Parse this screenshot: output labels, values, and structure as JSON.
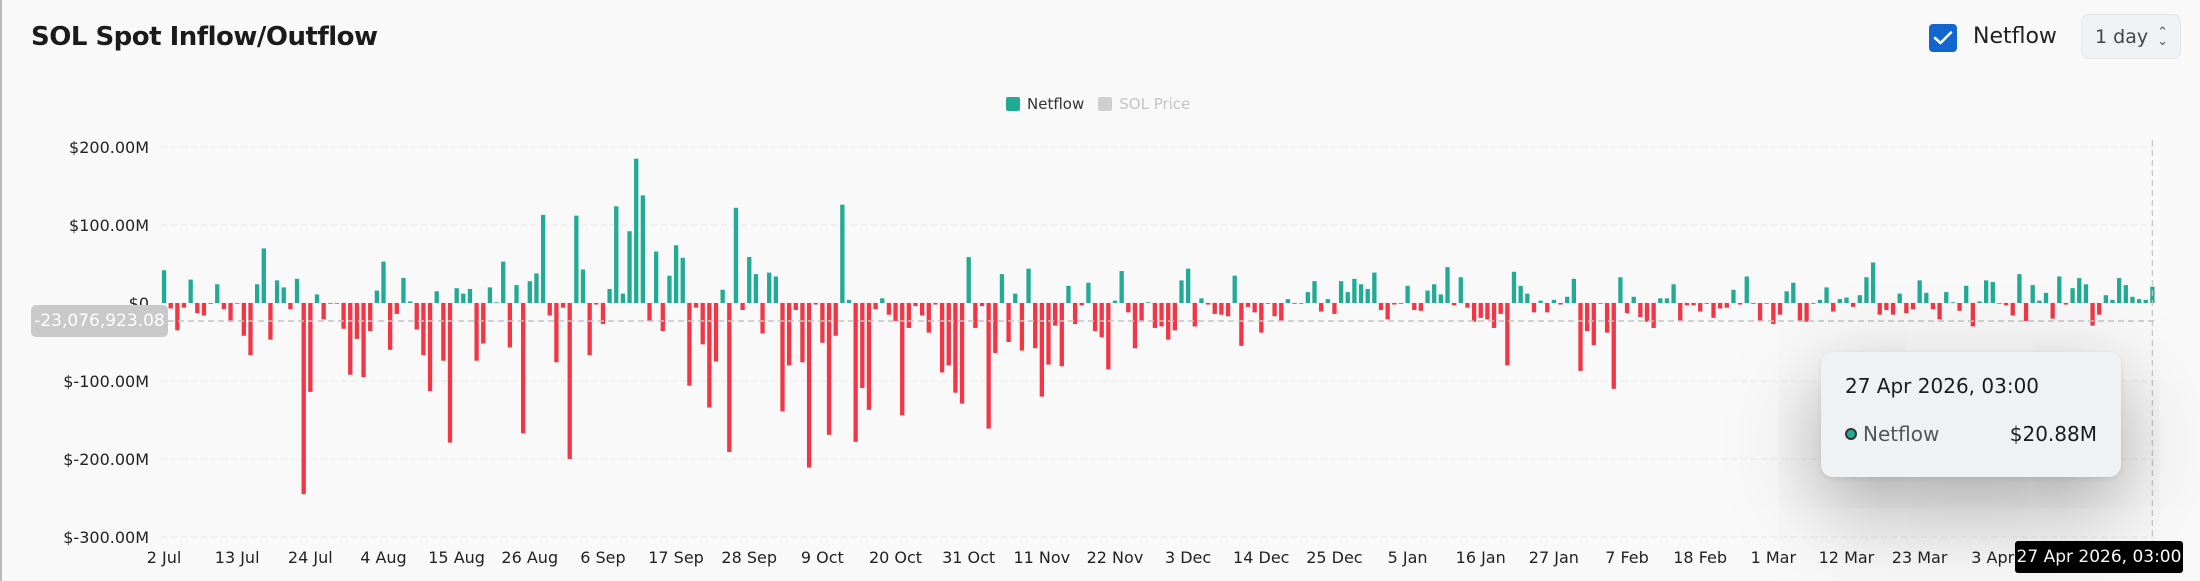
{
  "header": {
    "title": "SOL Spot Inflow/Outflow",
    "netflow_toggle": {
      "label": "Netflow",
      "checked": true
    },
    "interval_select": {
      "value": "1 day"
    }
  },
  "legend": [
    {
      "label": "Netflow",
      "color": "#22ab94",
      "active": true
    },
    {
      "label": "SOL Price",
      "color": "#cfcfcf",
      "active": false
    }
  ],
  "crosshair": {
    "y_value_label": "-23,076,923.08",
    "x_value_label": "27 Apr 2026, 03:00"
  },
  "tooltip": {
    "date": "27 Apr 2026, 03:00",
    "series": "Netflow",
    "value": "$20.88M"
  },
  "colors": {
    "positive": "#22ab94",
    "negative": "#f23645"
  },
  "chart_data": {
    "type": "bar",
    "title": "SOL Spot Inflow/Outflow",
    "unit": "USD millions",
    "ylim": [
      -300,
      200
    ],
    "y_ticks": [
      200,
      100,
      0,
      -100,
      -200,
      -300
    ],
    "y_tick_labels": [
      "$200.00M",
      "$100.00M",
      "$0",
      "$-100.00M",
      "$-200.00M",
      "$-300.00M"
    ],
    "x_tick_labels": [
      "2 Jul",
      "13 Jul",
      "24 Jul",
      "4 Aug",
      "15 Aug",
      "26 Aug",
      "6 Sep",
      "17 Sep",
      "28 Sep",
      "9 Oct",
      "20 Oct",
      "31 Oct",
      "11 Nov",
      "22 Nov",
      "3 Dec",
      "14 Dec",
      "25 Dec",
      "5 Jan",
      "16 Jan",
      "27 Jan",
      "7 Feb",
      "18 Feb",
      "1 Mar",
      "12 Mar",
      "23 Mar",
      "3 Apr"
    ],
    "x_range": [
      "2 Jul",
      "27 Apr 2026"
    ],
    "grid": true,
    "legend_position": "top-center",
    "series": [
      {
        "name": "Netflow",
        "values": [
          42,
          -7,
          -35,
          -6,
          30,
          -13,
          -16,
          -1,
          24,
          -8,
          -24,
          0,
          -42,
          -67,
          24,
          70,
          -47,
          29,
          20,
          -8,
          31,
          -245,
          -114,
          11,
          -21,
          0,
          0,
          -33,
          -92,
          -46,
          -95,
          -36,
          16,
          53,
          -60,
          -14,
          32,
          2,
          -34,
          -67,
          -113,
          15,
          -74,
          -179,
          19,
          12,
          18,
          -74,
          -52,
          20,
          1,
          53,
          -57,
          23,
          -167,
          28,
          38,
          113,
          -16,
          -76,
          -6,
          -200,
          112,
          43,
          -67,
          -2,
          -27,
          18,
          124,
          12,
          92,
          185,
          138,
          -23,
          66,
          -36,
          35,
          74,
          58,
          -106,
          -6,
          -53,
          -134,
          -75,
          17,
          -191,
          122,
          -9,
          59,
          37,
          -39,
          39,
          34,
          -139,
          -80,
          -9,
          -76,
          -211,
          -2,
          -51,
          -169,
          -42,
          126,
          4,
          -178,
          -109,
          -137,
          -8,
          6,
          -15,
          -23,
          -144,
          -32,
          -4,
          -16,
          -38,
          -2,
          -89,
          -80,
          -115,
          -129,
          59,
          -32,
          -4,
          -161,
          -64,
          37,
          -50,
          12,
          -61,
          44,
          -58,
          -120,
          -79,
          -29,
          -81,
          22,
          -27,
          -3,
          26,
          -36,
          -44,
          -85,
          3,
          41,
          -12,
          -58,
          -24,
          1,
          -32,
          -30,
          -47,
          -35,
          29,
          44,
          -30,
          6,
          -2,
          -14,
          -15,
          -17,
          35,
          -55,
          -5,
          -12,
          -38,
          -1,
          -17,
          -23,
          5,
          -1,
          0,
          14,
          28,
          -11,
          5,
          -14,
          28,
          14,
          31,
          24,
          18,
          39,
          -9,
          -21,
          -2,
          -1,
          22,
          -9,
          -10,
          16,
          24,
          11,
          46,
          -3,
          33,
          -6,
          -24,
          -19,
          -21,
          -32,
          -14,
          -80,
          40,
          22,
          12,
          -12,
          3,
          -12,
          4,
          -2,
          8,
          31,
          -87,
          -36,
          -54,
          0,
          -38,
          -110,
          33,
          -13,
          8,
          -18,
          -24,
          -32,
          6,
          6,
          24,
          -23,
          -3,
          -3,
          -11,
          -1,
          -19,
          -7,
          -6,
          17,
          -2,
          34,
          -1,
          -23,
          0,
          -27,
          -15,
          15,
          26,
          -24,
          -24,
          0,
          4,
          20,
          -11,
          5,
          7,
          -5,
          10,
          33,
          52,
          -15,
          -9,
          -15,
          12,
          -13,
          -8,
          29,
          13,
          -8,
          -21,
          14,
          1,
          -10,
          22,
          -30,
          2,
          29,
          27,
          0,
          -3,
          -16,
          37,
          -23,
          23,
          3,
          13,
          -20,
          34,
          -2,
          19,
          32,
          24,
          -29,
          -15,
          10,
          4,
          32,
          23,
          8,
          5,
          4,
          20.88
        ]
      }
    ]
  }
}
